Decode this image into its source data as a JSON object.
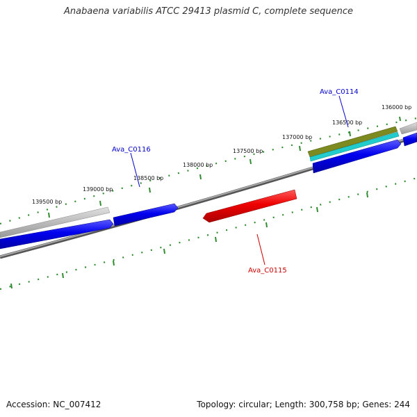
{
  "title": "Anabaena variabilis ATCC 29413 plasmid C, complete sequence",
  "accession": "Accession: NC_007412",
  "topology": "Topology: circular; Length: 300,758 bp; Genes: 244",
  "colors": {
    "tick": "#2e8b2e",
    "backbone": "#808080",
    "gene_forward": "#0000ee",
    "gene_reverse": "#ee0000",
    "pseudo": "#bbbbbb",
    "olive": "#7c8a1f",
    "cyan": "#22cccc"
  },
  "bp_labels": [
    {
      "id": "bp-136000",
      "text": "136000 bp"
    },
    {
      "id": "bp-136500",
      "text": "136500 bp"
    },
    {
      "id": "bp-137000",
      "text": "137000 bp"
    },
    {
      "id": "bp-137500",
      "text": "137500 bp"
    },
    {
      "id": "bp-138000",
      "text": "138000 bp"
    },
    {
      "id": "bp-138500",
      "text": "138500 bp"
    },
    {
      "id": "bp-139000",
      "text": "139000 bp"
    },
    {
      "id": "bp-139500",
      "text": "139500 bp"
    }
  ],
  "gene_labels": [
    {
      "id": "ava-c0114",
      "text": "Ava_C0114",
      "color": "#0000cc"
    },
    {
      "id": "ava-c0116",
      "text": "Ava_C0116",
      "color": "#0000cc"
    },
    {
      "id": "ava-c0115",
      "text": "Ava_C0115",
      "color": "#cc0000"
    }
  ]
}
